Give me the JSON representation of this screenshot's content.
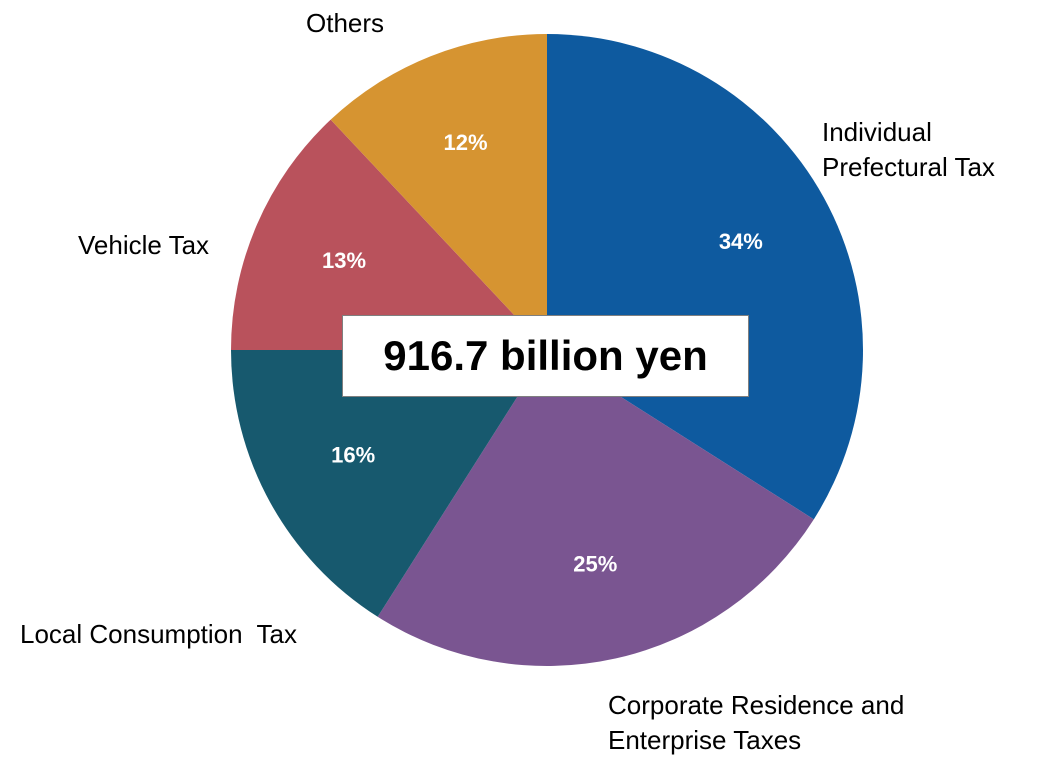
{
  "chart_data": {
    "type": "pie",
    "center_label": "916.7 billion yen",
    "slices": [
      {
        "name_lines": [
          "Individual",
          "Prefectural Tax"
        ],
        "value": 34,
        "label": "34%",
        "color": "#0e5a9f"
      },
      {
        "name_lines": [
          "Corporate Residence and",
          "Enterprise Taxes"
        ],
        "value": 25,
        "label": "25%",
        "color": "#7a5591"
      },
      {
        "name_lines": [
          "Local Consumption  Tax"
        ],
        "value": 16,
        "label": "16%",
        "color": "#17596e"
      },
      {
        "name_lines": [
          "Vehicle Tax"
        ],
        "value": 13,
        "label": "13%",
        "color": "#b9525c"
      },
      {
        "name_lines": [
          "Others"
        ],
        "value": 12,
        "label": "12%",
        "color": "#d69431"
      }
    ]
  }
}
